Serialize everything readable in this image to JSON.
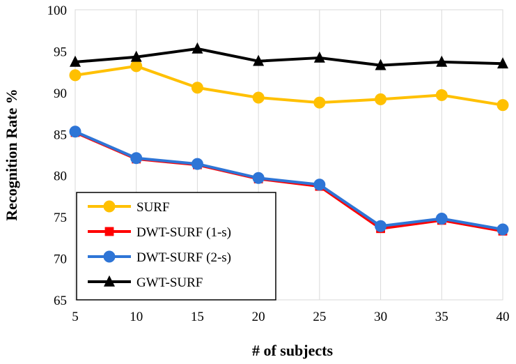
{
  "chart_data": {
    "type": "line",
    "title": "",
    "xlabel": "# of subjects",
    "ylabel": "Recognition Rate %",
    "x": [
      5,
      10,
      15,
      20,
      25,
      30,
      35,
      40
    ],
    "x_tick_labels": [
      "5",
      "10",
      "15",
      "20",
      "25",
      "30",
      "35",
      "40"
    ],
    "ylim": [
      65,
      100
    ],
    "y_ticks": [
      65,
      70,
      75,
      80,
      85,
      90,
      95,
      100
    ],
    "y_tick_labels": [
      "65",
      "70",
      "75",
      "80",
      "85",
      "90",
      "95",
      "100"
    ],
    "grid": "vertical",
    "legend_position": "lower-left",
    "series": [
      {
        "name": "SURF",
        "color": "#FFC000",
        "marker": "circle",
        "values": [
          92.1,
          93.2,
          90.6,
          89.4,
          88.8,
          89.2,
          89.7,
          88.5
        ]
      },
      {
        "name": "DWT-SURF (1-s)",
        "color": "#FF0000",
        "marker": "square",
        "values": [
          85.2,
          82.0,
          81.3,
          79.6,
          78.7,
          73.6,
          74.6,
          73.3
        ]
      },
      {
        "name": "DWT-SURF (2-s)",
        "color": "#2E75D6",
        "marker": "circle",
        "values": [
          85.3,
          82.1,
          81.4,
          79.7,
          78.9,
          73.9,
          74.8,
          73.5
        ]
      },
      {
        "name": "GWT-SURF",
        "color": "#000000",
        "marker": "triangle",
        "values": [
          93.7,
          94.3,
          95.3,
          93.8,
          94.2,
          93.3,
          93.7,
          93.5
        ]
      }
    ]
  }
}
